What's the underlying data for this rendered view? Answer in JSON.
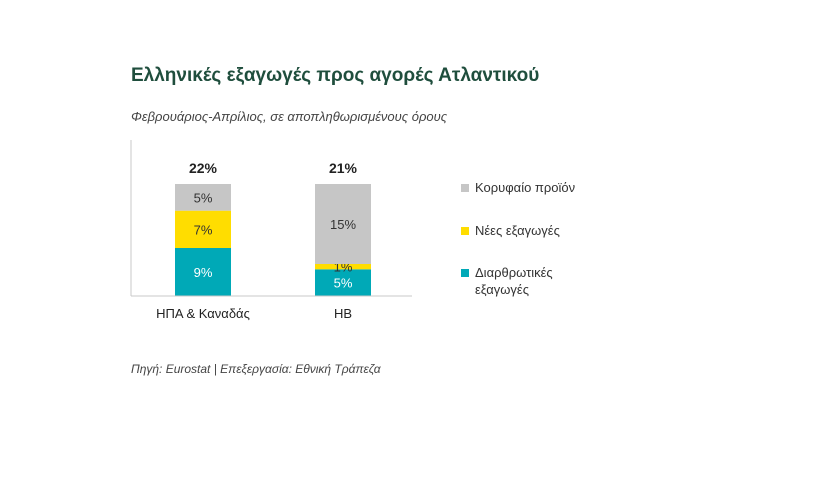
{
  "title": "Ελληνικές εξαγωγές προς αγορές Ατλαντικού",
  "subtitle": "Φεβρουάριος-Απρίλιος, σε αποπληθωρισμένους όρους",
  "source": "Πηγή: Eurostat | Επεξεργασία: Εθνική Τράπεζα",
  "chart_data": {
    "type": "bar",
    "stacked": true,
    "categories": [
      "ΗΠΑ & Καναδάς",
      "ΗΒ"
    ],
    "totals": [
      "22%",
      "21%"
    ],
    "series": [
      {
        "name": "Διαρθρωτικές εξαγωγές",
        "values": [
          9,
          5
        ],
        "labels": [
          "9%",
          "5%"
        ],
        "color": "#00a9b7"
      },
      {
        "name": "Νέες εξαγωγές",
        "values": [
          7,
          1
        ],
        "labels": [
          "7%",
          "1%"
        ],
        "color": "#ffdd00"
      },
      {
        "name": "Κορυφαίο προϊόν",
        "values": [
          5,
          15
        ],
        "labels": [
          "5%",
          "15%"
        ],
        "color": "#c6c6c6"
      }
    ],
    "legend_order": [
      2,
      1,
      0
    ],
    "legend_position": "right",
    "ylim": [
      0,
      21
    ],
    "grid": false
  }
}
